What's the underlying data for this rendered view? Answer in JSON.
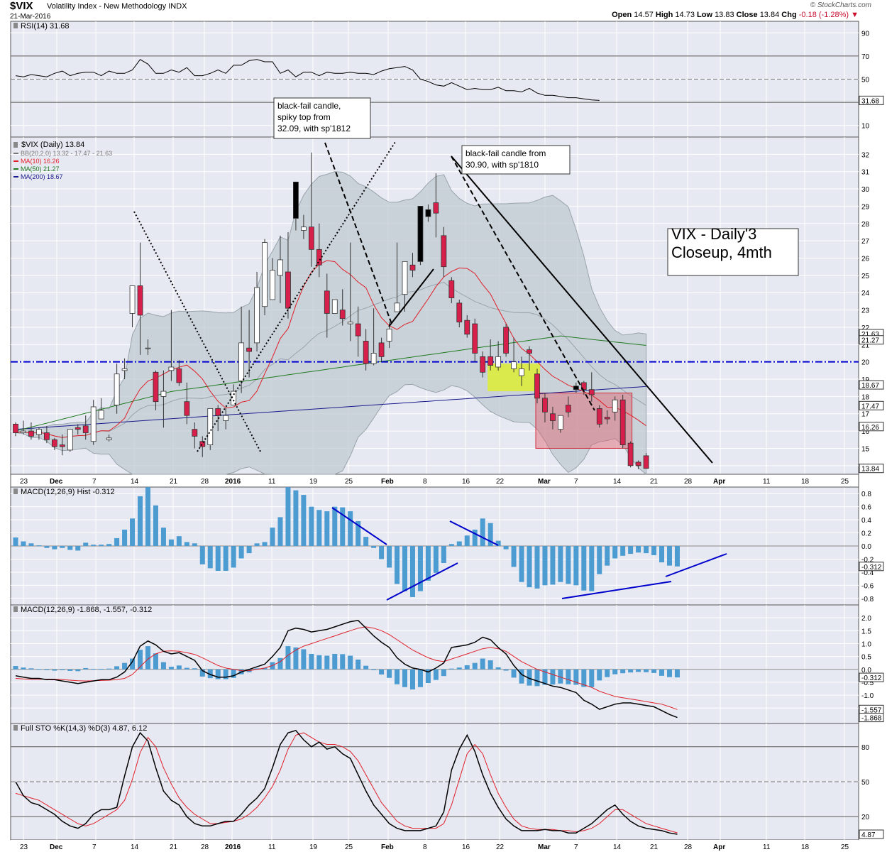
{
  "header": {
    "symbol": "$VIX",
    "name": "Volatility Index - New Methodology INDX",
    "date": "21-Mar-2016",
    "brand": "© StockCharts.com",
    "open_label": "Open",
    "open": "14.57",
    "high_label": "High",
    "high": "14.73",
    "low_label": "Low",
    "low": "13.83",
    "close_label": "Close",
    "close": "13.84",
    "chg_label": "Chg",
    "chg": "-0.18 (-1.28%)"
  },
  "colors": {
    "up": "#ffffff",
    "down": "#d6204b",
    "black_candle": "#000000",
    "bb_fill": "#bcc7cf",
    "ma10": "#e0202a",
    "ma50": "#1f7a1f",
    "ma200": "#1a1a8c",
    "macd_bar": "#4c9bd1",
    "guide_blue": "#0000cc",
    "box_yellow": "#ddee33",
    "box_red": "#e0606a"
  },
  "chart_data": [
    {
      "type": "line",
      "panel": "rsi",
      "title": "RSI(14) 31.68",
      "ylim": [
        0,
        100
      ],
      "ticks": [
        10,
        30,
        50,
        70,
        90
      ],
      "current_label": "31.68",
      "values": [
        53,
        52,
        54,
        53,
        52,
        55,
        57,
        53,
        55,
        56,
        56,
        53,
        57,
        55,
        55,
        58,
        67,
        63,
        55,
        55,
        58,
        56,
        60,
        53,
        53,
        55,
        58,
        55,
        62,
        62,
        66,
        67,
        65,
        65,
        55,
        58,
        52,
        56,
        56,
        53,
        56,
        55,
        55,
        56,
        55,
        55,
        54,
        57,
        59,
        60,
        61,
        58,
        50,
        48,
        45,
        44,
        47,
        44,
        41,
        42,
        41,
        41,
        43,
        40,
        40,
        39,
        42,
        38,
        36,
        36,
        35,
        34,
        34,
        33,
        32,
        31.68
      ]
    },
    {
      "type": "candlestick",
      "panel": "price",
      "title": "$VIX (Daily) 13.84",
      "legend": [
        "BB(20,2.0) 13.32 - 17.47 - 21.63",
        "MA(10) 16.26",
        "MA(50) 21.27",
        "MA(200) 18.67"
      ],
      "ylim": [
        13.5,
        33
      ],
      "ticks": [
        14,
        15,
        16,
        17,
        18,
        19,
        20,
        21,
        22,
        23,
        24,
        25,
        26,
        27,
        28,
        29,
        30,
        31,
        32
      ],
      "right_labels": [
        "21.63",
        "21.27",
        "18.67",
        "17.47",
        "16.26",
        "13.84"
      ],
      "x_labels": [
        "23",
        "Dec",
        "7",
        "14",
        "21",
        "28",
        "2016",
        "11",
        "19",
        "25",
        "Feb",
        "8",
        "16",
        "22",
        "Mar",
        "7",
        "14",
        "21",
        "28",
        "Apr",
        "11",
        "18",
        "25"
      ],
      "candles": [
        [
          16.4,
          16.5,
          15.9,
          15.7
        ],
        [
          15.9,
          16.6,
          16.0,
          15.8
        ],
        [
          16.0,
          16.5,
          15.7,
          15.5
        ],
        [
          15.8,
          16.2,
          16.1,
          15.5
        ],
        [
          15.9,
          16.3,
          15.5,
          15.3
        ],
        [
          15.5,
          15.6,
          15.1,
          14.9
        ],
        [
          15.2,
          15.8,
          15.1,
          14.6
        ],
        [
          14.9,
          15.7,
          16.1,
          14.8
        ],
        [
          16.2,
          16.4,
          16.1,
          15.8
        ],
        [
          16.3,
          16.9,
          15.9,
          15.5
        ],
        [
          15.4,
          17.8,
          17.4,
          15.2
        ],
        [
          16.7,
          17.9,
          17.2,
          16.8
        ],
        [
          15.5,
          15.8,
          15.6,
          15.4
        ],
        [
          17.5,
          19.9,
          19.3,
          17.0
        ],
        [
          19.5,
          20.2,
          19.6,
          19.0
        ],
        [
          22.8,
          24.0,
          24.4,
          22.0
        ],
        [
          24.4,
          26.9,
          22.7,
          20.4
        ],
        [
          20.8,
          21.3,
          20.8,
          20.4
        ],
        [
          19.4,
          19.5,
          17.7,
          17.2
        ],
        [
          18.0,
          19.5,
          18.3,
          16.2
        ],
        [
          19.5,
          23.0,
          19.7,
          18.9
        ],
        [
          19.6,
          20.1,
          18.8,
          18.6
        ],
        [
          17.7,
          18.8,
          16.9,
          16.4
        ],
        [
          16.1,
          16.5,
          15.7,
          15.0
        ],
        [
          15.4,
          15.7,
          15.1,
          14.5
        ],
        [
          15.2,
          16.0,
          17.3,
          14.9
        ],
        [
          17.3,
          17.5,
          16.9,
          16.0
        ],
        [
          16.6,
          17.3,
          16.9,
          16.1
        ],
        [
          17.5,
          18.7,
          18.3,
          17.5
        ],
        [
          18.9,
          23.2,
          21.1,
          18.2
        ],
        [
          20.8,
          23.0,
          20.6,
          19.1
        ],
        [
          21.1,
          25.2,
          24.3,
          20.6
        ],
        [
          23.2,
          27.1,
          26.9,
          22.7
        ],
        [
          23.6,
          26.0,
          25.3,
          23.7
        ],
        [
          25.0,
          27.3,
          25.9,
          23.4
        ],
        [
          25.2,
          27.5,
          23.1,
          22.5
        ],
        [
          28.3,
          30.3,
          30.4,
          27.6
        ],
        [
          27.6,
          28.5,
          27.8,
          27.1
        ],
        [
          27.8,
          32.1,
          26.5,
          25.5
        ],
        [
          26.5,
          28.0,
          25.6,
          24.9
        ],
        [
          24.1,
          25.1,
          22.8,
          21.4
        ],
        [
          22.8,
          23.5,
          23.6,
          22.9
        ],
        [
          23.0,
          24.2,
          22.5,
          22.1
        ],
        [
          22.2,
          26.9,
          22.3,
          21.2
        ],
        [
          22.2,
          23.2,
          21.5,
          20.3
        ],
        [
          21.2,
          21.9,
          19.9,
          19.5
        ],
        [
          19.9,
          23.1,
          20.5,
          19.8
        ],
        [
          21.1,
          21.4,
          20.3,
          20.0
        ],
        [
          21.2,
          22.3,
          21.9,
          20.8
        ],
        [
          22.9,
          26.9,
          23.4,
          22.9
        ],
        [
          23.9,
          25.1,
          25.8,
          22.9
        ],
        [
          25.6,
          26.3,
          25.3,
          24.9
        ],
        [
          25.8,
          29.0,
          29.0,
          25.6
        ],
        [
          28.4,
          29.1,
          28.8,
          28.1
        ],
        [
          29.2,
          30.9,
          28.6,
          27.2
        ],
        [
          27.3,
          27.8,
          25.5,
          24.9
        ],
        [
          24.7,
          24.9,
          23.7,
          23.4
        ],
        [
          23.4,
          23.6,
          22.3,
          22.0
        ],
        [
          22.4,
          22.7,
          21.6,
          21.4
        ],
        [
          22.2,
          22.5,
          20.5,
          20.0
        ],
        [
          20.3,
          20.6,
          19.4,
          19.1
        ],
        [
          20.3,
          21.3,
          19.8,
          19.5
        ],
        [
          19.7,
          21.2,
          20.3,
          19.5
        ],
        [
          22.0,
          22.2,
          20.5,
          20.3
        ],
        [
          19.6,
          21.4,
          20.0,
          19.4
        ],
        [
          19.2,
          20.3,
          19.6,
          18.6
        ],
        [
          20.7,
          20.9,
          20.5,
          19.5
        ],
        [
          19.3,
          19.6,
          17.9,
          17.6
        ],
        [
          17.9,
          18.2,
          17.1,
          16.5
        ],
        [
          17.0,
          17.4,
          16.6,
          16.1
        ],
        [
          16.1,
          16.9,
          16.9,
          15.9
        ],
        [
          17.5,
          18.0,
          17.1,
          16.8
        ],
        [
          18.4,
          18.8,
          18.6,
          18.2
        ],
        [
          18.8,
          18.9,
          18.4,
          18.1
        ],
        [
          18.4,
          19.4,
          18.1,
          17.7
        ],
        [
          17.3,
          17.5,
          16.4,
          16.2
        ],
        [
          16.8,
          17.2,
          16.7,
          16.4
        ],
        [
          17.1,
          18.0,
          17.8,
          16.6
        ],
        [
          17.8,
          18.1,
          15.2,
          15.0
        ],
        [
          15.3,
          15.4,
          14.0,
          13.9
        ],
        [
          14.2,
          14.3,
          14.0,
          13.8
        ],
        [
          14.57,
          14.73,
          13.84,
          13.83
        ]
      ],
      "annotations": [
        {
          "text": [
            "black-fail candle,",
            "spiky top from",
            "32.09, with sp'1812"
          ]
        },
        {
          "text": [
            "black-fail candle from",
            "30.90, with sp'1810"
          ]
        },
        {
          "text": [
            "VIX - Daily'3",
            "Closeup, 4mth"
          ]
        }
      ]
    },
    {
      "type": "bar",
      "panel": "macd_hist",
      "title": "MACD(12,26,9) Hist -0.312",
      "ylim": [
        -0.9,
        0.9
      ],
      "ticks": [
        -0.8,
        -0.6,
        -0.4,
        -0.2,
        0.0,
        0.2,
        0.4,
        0.6,
        0.8
      ],
      "current_label": "-0.312",
      "values": [
        0.13,
        0.07,
        0.04,
        0.01,
        -0.03,
        -0.05,
        -0.03,
        -0.06,
        -0.07,
        0.05,
        0.02,
        0.02,
        0.03,
        0.12,
        0.25,
        0.42,
        0.76,
        0.9,
        0.62,
        0.28,
        0.1,
        0.15,
        0.06,
        0.04,
        -0.28,
        -0.34,
        -0.38,
        -0.38,
        -0.33,
        -0.19,
        -0.11,
        0.04,
        0.06,
        0.28,
        0.44,
        0.9,
        0.85,
        0.78,
        0.6,
        0.55,
        0.53,
        0.6,
        0.59,
        0.53,
        0.38,
        0.14,
        -0.03,
        -0.2,
        -0.33,
        -0.58,
        -0.69,
        -0.78,
        -0.69,
        -0.53,
        -0.41,
        -0.26,
        0.03,
        0.07,
        0.16,
        0.25,
        0.42,
        0.35,
        0.08,
        -0.05,
        -0.32,
        -0.55,
        -0.63,
        -0.65,
        -0.6,
        -0.59,
        -0.55,
        -0.58,
        -0.6,
        -0.68,
        -0.69,
        -0.43,
        -0.3,
        -0.19,
        -0.15,
        -0.12,
        -0.1,
        -0.11,
        -0.14,
        -0.25,
        -0.3,
        -0.312
      ]
    },
    {
      "type": "line",
      "panel": "macd",
      "title": "MACD(12,26,9) -1.868, -1.557, -0.312",
      "ylim": [
        -2.1,
        2.5
      ],
      "ticks": [
        -1.5,
        -1.0,
        -0.5,
        0.0,
        0.5,
        1.0,
        1.5,
        2.0
      ],
      "right_labels": [
        "-0.312",
        "-1.557",
        "-1.868"
      ],
      "series": [
        {
          "name": "MACD",
          "values": [
            -0.25,
            -0.3,
            -0.35,
            -0.35,
            -0.4,
            -0.4,
            -0.45,
            -0.5,
            -0.55,
            -0.5,
            -0.45,
            -0.4,
            -0.4,
            -0.3,
            -0.1,
            0.3,
            0.9,
            1.1,
            0.95,
            0.7,
            0.6,
            0.65,
            0.5,
            0.35,
            -0.05,
            -0.2,
            -0.3,
            -0.3,
            -0.25,
            -0.1,
            0.0,
            0.1,
            0.2,
            0.5,
            0.85,
            1.5,
            1.6,
            1.55,
            1.45,
            1.5,
            1.55,
            1.65,
            1.75,
            1.85,
            1.9,
            1.6,
            1.3,
            1.05,
            0.85,
            0.45,
            0.2,
            0.05,
            0.0,
            -0.1,
            0.05,
            0.25,
            0.85,
            0.9,
            0.95,
            1.05,
            1.25,
            1.15,
            0.85,
            0.6,
            0.15,
            -0.2,
            -0.35,
            -0.45,
            -0.55,
            -0.65,
            -0.7,
            -0.8,
            -0.9,
            -1.2,
            -1.35,
            -1.55,
            -1.45,
            -1.35,
            -1.3,
            -1.3,
            -1.35,
            -1.4,
            -1.45,
            -1.6,
            -1.75,
            -1.868
          ]
        },
        {
          "name": "Signal",
          "values": [
            -0.35,
            -0.37,
            -0.38,
            -0.38,
            -0.38,
            -0.38,
            -0.4,
            -0.42,
            -0.44,
            -0.45,
            -0.44,
            -0.43,
            -0.42,
            -0.4,
            -0.35,
            -0.2,
            0.1,
            0.4,
            0.6,
            0.7,
            0.72,
            0.7,
            0.65,
            0.58,
            0.45,
            0.3,
            0.15,
            0.05,
            0.0,
            -0.05,
            -0.05,
            0.0,
            0.05,
            0.15,
            0.3,
            0.55,
            0.75,
            0.9,
            1.0,
            1.1,
            1.2,
            1.3,
            1.4,
            1.5,
            1.6,
            1.65,
            1.6,
            1.5,
            1.35,
            1.15,
            0.95,
            0.75,
            0.6,
            0.45,
            0.35,
            0.3,
            0.4,
            0.5,
            0.6,
            0.7,
            0.8,
            0.85,
            0.8,
            0.7,
            0.5,
            0.3,
            0.15,
            0.0,
            -0.1,
            -0.2,
            -0.3,
            -0.4,
            -0.5,
            -0.6,
            -0.7,
            -0.85,
            -0.95,
            -1.05,
            -1.1,
            -1.15,
            -1.2,
            -1.25,
            -1.3,
            -1.35,
            -1.45,
            -1.557
          ]
        }
      ]
    },
    {
      "type": "line",
      "panel": "stochastic",
      "title": "Full STO %K(14,3) %D(3) 4.87, 6.12",
      "ylim": [
        0,
        100
      ],
      "ticks": [
        20,
        50,
        80
      ],
      "current_label": "4.87",
      "series": [
        {
          "name": "%K",
          "values": [
            50,
            38,
            32,
            30,
            26,
            22,
            16,
            12,
            10,
            14,
            22,
            26,
            26,
            28,
            55,
            80,
            92,
            85,
            62,
            42,
            34,
            30,
            20,
            14,
            12,
            12,
            14,
            16,
            16,
            22,
            30,
            36,
            44,
            62,
            82,
            92,
            94,
            86,
            80,
            84,
            78,
            80,
            74,
            70,
            56,
            42,
            30,
            22,
            14,
            10,
            8,
            8,
            8,
            10,
            12,
            24,
            60,
            78,
            90,
            76,
            56,
            40,
            28,
            18,
            12,
            8,
            8,
            8,
            9,
            8,
            8,
            6,
            6,
            10,
            14,
            20,
            26,
            30,
            22,
            16,
            12,
            10,
            9,
            8,
            6,
            4.87
          ]
        },
        {
          "name": "%D",
          "values": [
            40,
            38,
            36,
            34,
            30,
            26,
            22,
            18,
            14,
            12,
            14,
            18,
            22,
            26,
            34,
            52,
            75,
            88,
            80,
            62,
            48,
            36,
            28,
            22,
            18,
            14,
            14,
            15,
            16,
            18,
            22,
            28,
            36,
            46,
            60,
            78,
            90,
            92,
            88,
            84,
            82,
            82,
            80,
            76,
            68,
            56,
            44,
            32,
            24,
            16,
            12,
            10,
            10,
            10,
            10,
            14,
            30,
            52,
            74,
            82,
            74,
            56,
            40,
            28,
            18,
            12,
            10,
            9,
            9,
            9,
            8,
            8,
            7,
            8,
            10,
            14,
            20,
            26,
            26,
            22,
            18,
            14,
            12,
            10,
            8,
            6.12
          ]
        }
      ]
    }
  ]
}
